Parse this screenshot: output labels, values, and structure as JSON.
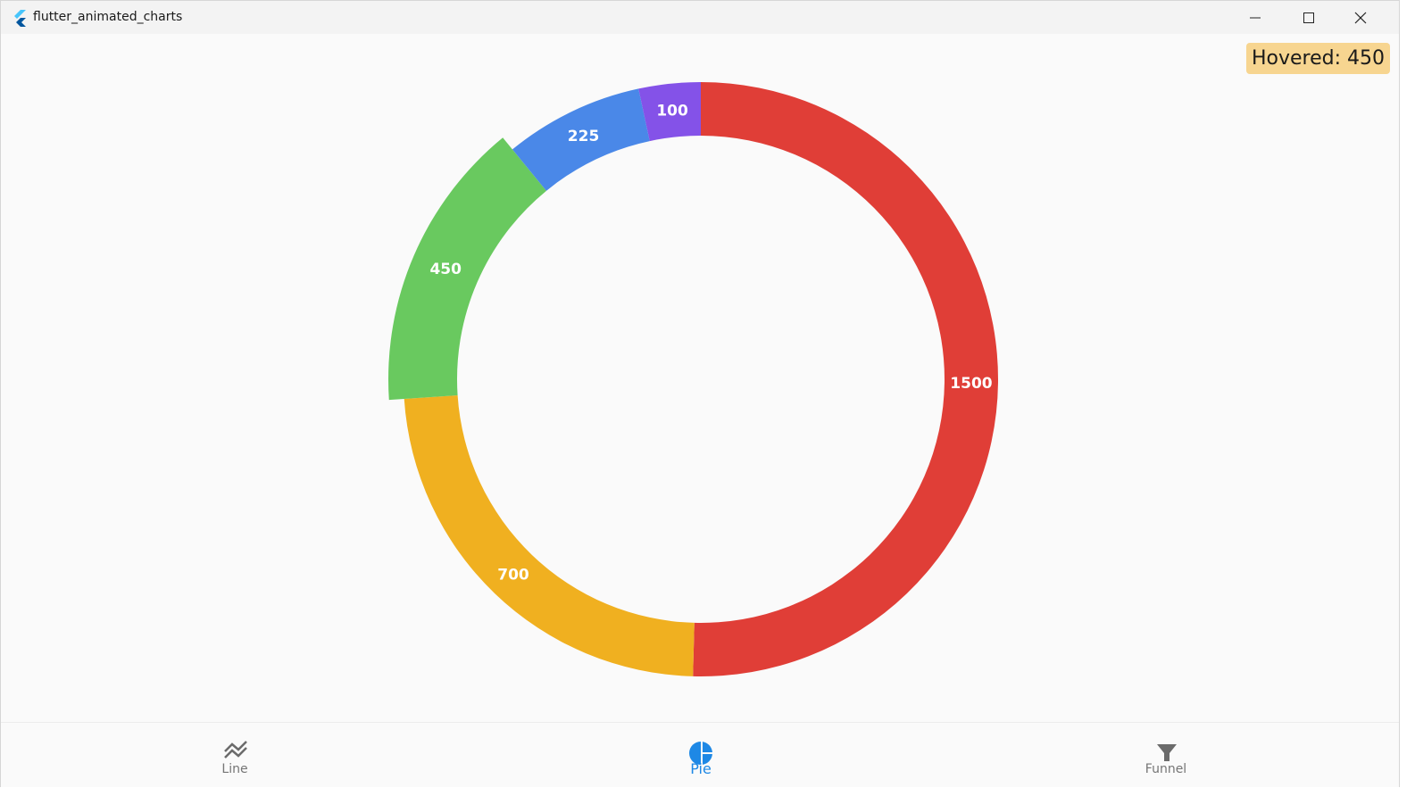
{
  "window": {
    "title": "flutter_animated_charts"
  },
  "hover_badge": "Hovered: 450",
  "chart_data": {
    "type": "pie",
    "values": [
      1500,
      700,
      450,
      225,
      100
    ],
    "colors": [
      "#e03e37",
      "#f0b020",
      "#69c95f",
      "#4a88e8",
      "#8452e8"
    ],
    "exploded": [
      false,
      false,
      true,
      false,
      false
    ]
  },
  "nav": {
    "items": [
      "Line",
      "Pie",
      "Funnel"
    ],
    "active": 1
  }
}
